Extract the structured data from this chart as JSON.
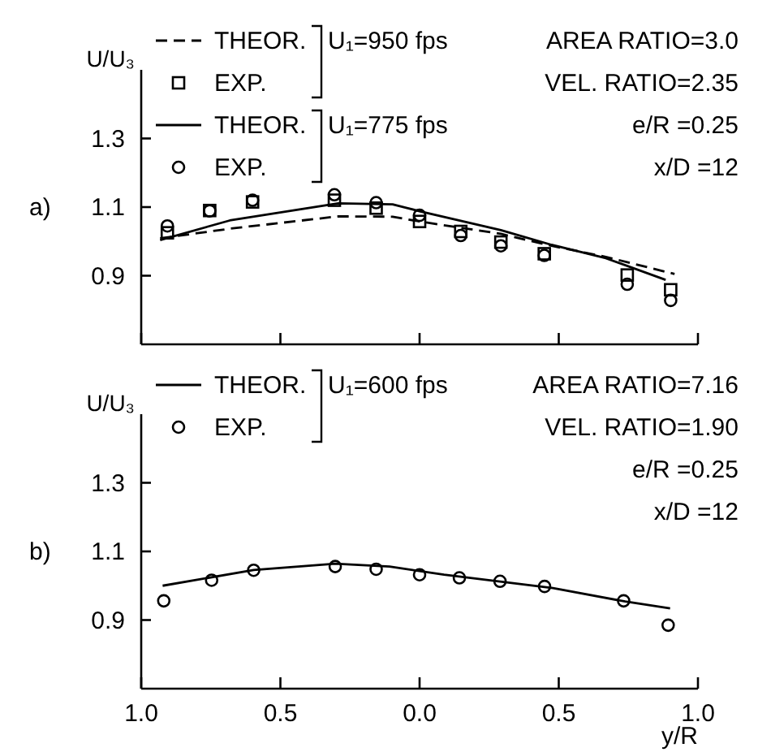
{
  "chart_data": [
    {
      "type": "line",
      "ylabel": "U/U₃",
      "xlim": [
        -1,
        1
      ],
      "ylim": [
        0.7,
        1.5
      ],
      "xticks": [
        {
          "value": -1,
          "label": null
        },
        {
          "value": -0.5,
          "label": null
        },
        {
          "value": 0,
          "label": null
        },
        {
          "value": 0.5,
          "label": null
        },
        {
          "value": 1,
          "label": null
        }
      ],
      "yticks": [
        {
          "value": 0.9,
          "label": "0.9"
        },
        {
          "value": 1.1,
          "label": "1.1"
        },
        {
          "value": 1.3,
          "label": "1.3"
        }
      ],
      "tick_labels": "y",
      "grid": false,
      "legend": "top left",
      "annotations": [
        "a)",
        "U₁=950 fps",
        "U₁=775 fps",
        "AREA RATIO=3.0",
        "VEL. RATIO=2.35",
        "e/R =0.25",
        "x/D =12"
      ],
      "series": [
        {
          "name": "THEOR.",
          "type": "line",
          "line_style": "dashed",
          "marker": "none",
          "color": "#000000",
          "x": [
            -0.932,
            -0.682,
            -0.292,
            -0.097,
            0,
            0.292,
            0.474,
            0.669,
            0.916
          ],
          "values": [
            1.009,
            1.037,
            1.073,
            1.072,
            1.058,
            1.022,
            0.987,
            0.955,
            0.905
          ]
        },
        {
          "name": "EXP.",
          "type": "scatter",
          "marker": "square",
          "color": "#000000",
          "x": [
            -0.906,
            -0.754,
            -0.6,
            -0.306,
            -0.156,
            0,
            0.148,
            0.292,
            0.448,
            0.746,
            0.902
          ],
          "values": [
            1.025,
            1.09,
            1.115,
            1.12,
            1.097,
            1.058,
            1.029,
            0.998,
            0.964,
            0.902,
            0.859
          ]
        },
        {
          "name": "THEOR.",
          "type": "line",
          "line_style": "solid",
          "marker": "none",
          "color": "#000000",
          "x": [
            -0.932,
            -0.682,
            -0.292,
            -0.097,
            0,
            0.292,
            0.474,
            0.669,
            0.884
          ],
          "values": [
            1.004,
            1.061,
            1.111,
            1.108,
            1.088,
            1.033,
            0.99,
            0.951,
            0.888
          ]
        },
        {
          "name": "EXP.",
          "type": "scatter",
          "marker": "circle",
          "color": "#000000",
          "x": [
            -0.906,
            -0.754,
            -0.6,
            -0.306,
            -0.156,
            0,
            0.148,
            0.292,
            0.448,
            0.746,
            0.902
          ],
          "values": [
            1.045,
            1.089,
            1.12,
            1.136,
            1.113,
            1.076,
            1.017,
            0.987,
            0.959,
            0.875,
            0.828
          ]
        }
      ]
    },
    {
      "type": "line",
      "ylabel": "U/U₃",
      "xlabel": "y/R",
      "xlim": [
        -1,
        1
      ],
      "ylim": [
        0.7,
        1.5
      ],
      "xticks": [
        {
          "value": -1,
          "label": "1.0"
        },
        {
          "value": -0.5,
          "label": "0.5"
        },
        {
          "value": 0,
          "label": "0.0"
        },
        {
          "value": 0.5,
          "label": "0.5"
        },
        {
          "value": 1,
          "label": "1.0"
        }
      ],
      "yticks": [
        {
          "value": 0.9,
          "label": "0.9"
        },
        {
          "value": 1.1,
          "label": "1.1"
        },
        {
          "value": 1.3,
          "label": "1.3"
        }
      ],
      "grid": false,
      "legend": "top left",
      "annotations": [
        "b)",
        "U₁=600 fps",
        "AREA RATIO=7.16",
        "VEL. RATIO=1.90",
        "e/R =0.25",
        "x/D =12"
      ],
      "series": [
        {
          "name": "THEOR.",
          "type": "line",
          "line_style": "solid",
          "marker": "none",
          "color": "#000000",
          "x": [
            -0.923,
            -0.596,
            -0.303,
            -0.108,
            0.088,
            0.479,
            0.739,
            0.9
          ],
          "values": [
            1.0,
            1.046,
            1.064,
            1.056,
            1.032,
            0.993,
            0.954,
            0.934
          ]
        },
        {
          "name": "EXP.",
          "type": "scatter",
          "marker": "circle",
          "color": "#000000",
          "x": [
            -0.919,
            -0.747,
            -0.596,
            -0.303,
            -0.156,
            0,
            0.143,
            0.289,
            0.449,
            0.733,
            0.893
          ],
          "values": [
            0.956,
            1.016,
            1.045,
            1.056,
            1.048,
            1.032,
            1.023,
            1.013,
            0.998,
            0.956,
            0.885
          ]
        }
      ]
    }
  ]
}
